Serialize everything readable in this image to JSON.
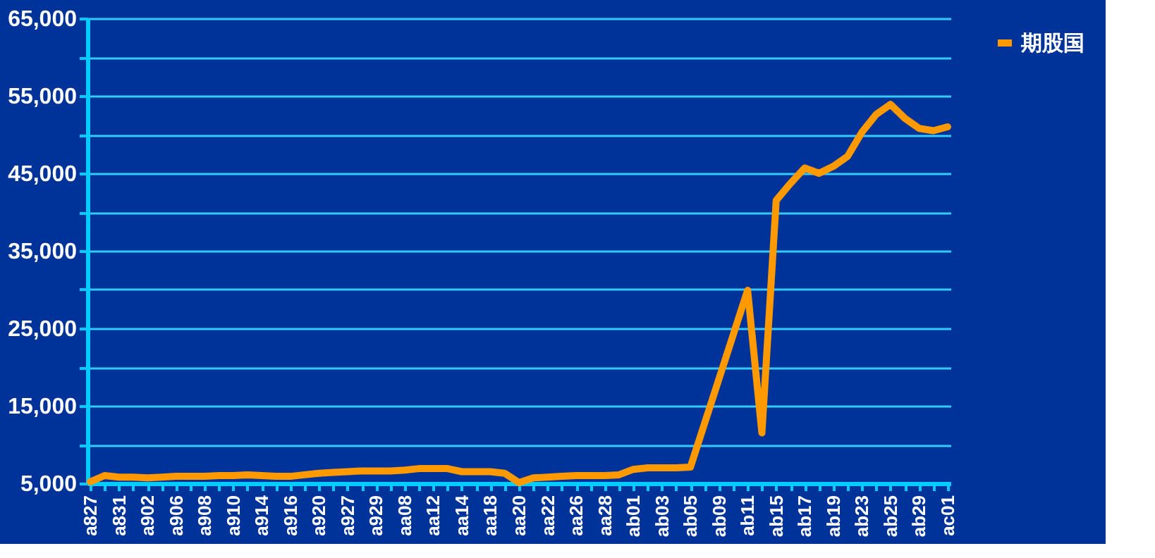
{
  "chart_data": {
    "type": "line",
    "categories": [
      "a827",
      null,
      "a831",
      null,
      "a902",
      null,
      "a906",
      null,
      "a908",
      null,
      "a910",
      null,
      "a914",
      null,
      "a916",
      null,
      "a920",
      null,
      "a927",
      null,
      "a929",
      null,
      "aa08",
      null,
      "aa12",
      null,
      "aa14",
      null,
      "aa18",
      null,
      "aa20",
      null,
      "aa22",
      null,
      "aa26",
      null,
      "aa28",
      null,
      "ab01",
      null,
      "ab03",
      null,
      "ab05",
      null,
      "ab09",
      null,
      "ab11",
      null,
      "ab15",
      null,
      "ab17",
      null,
      "ab19",
      null,
      "ab23",
      null,
      "ab25",
      null,
      "ab29",
      null,
      "ac01"
    ],
    "series": [
      {
        "name": "期股国",
        "color": "#ff9900",
        "values": [
          5200,
          6000,
          5800,
          5800,
          5700,
          5800,
          5900,
          5900,
          5900,
          6000,
          6000,
          6100,
          6000,
          5900,
          5900,
          6100,
          6300,
          6400,
          6500,
          6600,
          6600,
          6600,
          6700,
          6900,
          6900,
          6900,
          6500,
          6500,
          6500,
          6300,
          5100,
          5700,
          5800,
          5900,
          6000,
          6000,
          6000,
          6100,
          6800,
          7000,
          7000,
          7000,
          7100,
          12800,
          18500,
          24200,
          29900,
          11500,
          41500,
          43700,
          45700,
          45000,
          45900,
          47200,
          50300,
          52600,
          53900,
          52100,
          50800,
          50500,
          51000
        ]
      }
    ],
    "ylim": [
      5000,
      65000
    ],
    "yticks": [
      {
        "value": 5000,
        "label": "5,000"
      },
      {
        "value": 10000,
        "label": null
      },
      {
        "value": 15000,
        "label": "15,000"
      },
      {
        "value": 20000,
        "label": null
      },
      {
        "value": 25000,
        "label": "25,000"
      },
      {
        "value": 30000,
        "label": null
      },
      {
        "value": 35000,
        "label": "35,000"
      },
      {
        "value": 40000,
        "label": null
      },
      {
        "value": 45000,
        "label": "45,000"
      },
      {
        "value": 50000,
        "label": null
      },
      {
        "value": 55000,
        "label": "55,000"
      },
      {
        "value": 60000,
        "label": null
      },
      {
        "value": 65000,
        "label": "65,000"
      }
    ],
    "grid": "y",
    "legend": "right",
    "marker": "none",
    "line_style": "solid"
  }
}
